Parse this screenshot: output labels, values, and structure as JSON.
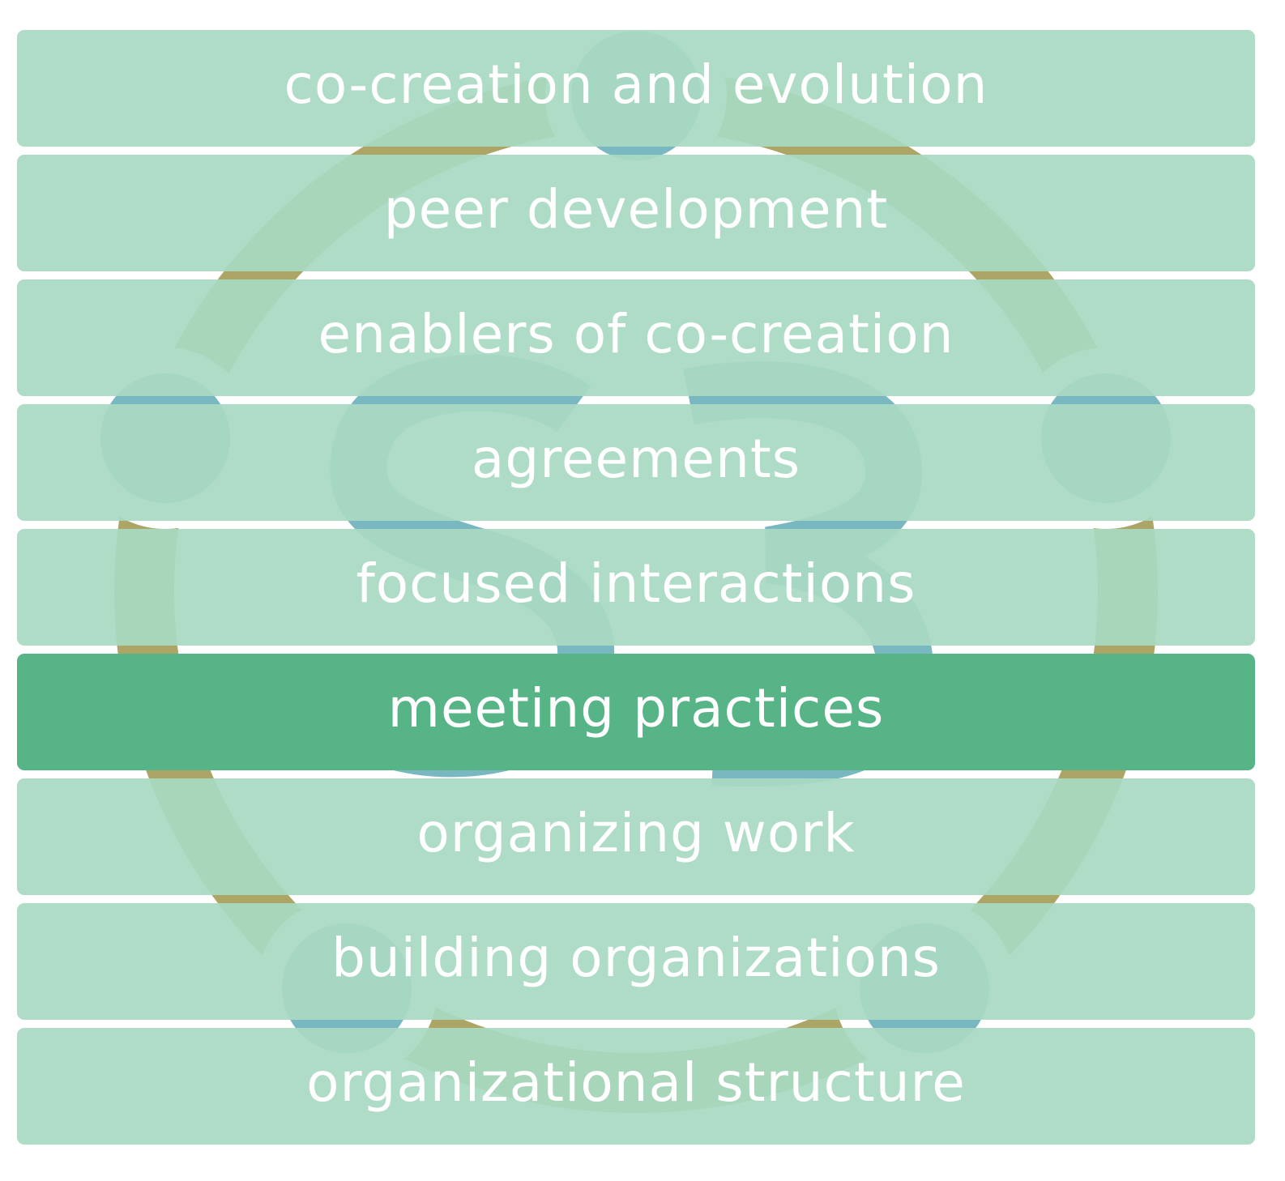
{
  "colors": {
    "layer_fill": "#a8d9c2",
    "layer_active_fill": "#57b487",
    "layer_text": "#ffffff",
    "logo_ring": "#aca565",
    "logo_nodes": "#7ab8c1"
  },
  "logo": {
    "icon": "s3-circle-logo-icon"
  },
  "layers": [
    {
      "label": "co-creation and evolution",
      "active": false
    },
    {
      "label": "peer development",
      "active": false
    },
    {
      "label": "enablers of co-creation",
      "active": false
    },
    {
      "label": "agreements",
      "active": false
    },
    {
      "label": "focused interactions",
      "active": false
    },
    {
      "label": "meeting practices",
      "active": true
    },
    {
      "label": "organizing work",
      "active": false
    },
    {
      "label": "building organizations",
      "active": false
    },
    {
      "label": "organizational structure",
      "active": false
    }
  ]
}
